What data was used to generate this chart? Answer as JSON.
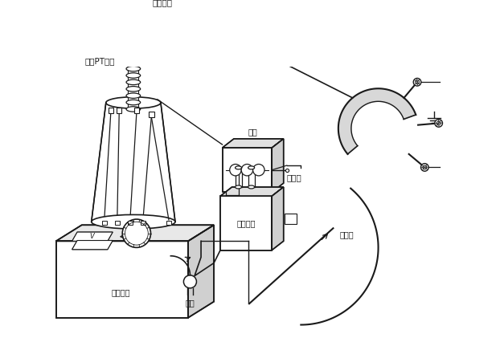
{
  "bg_color": "#ffffff",
  "line_color": "#1a1a1a",
  "labels": {
    "limit_resistor": "限流电阵",
    "hv_pt": "高压PT直流",
    "coupler": "耦器",
    "hv_capacitor": "高压电容",
    "hv_earth": "高压坑",
    "voltage_regulator": "调压器者",
    "power_source": "电源",
    "discharge_rod": "放电棒"
  },
  "figsize": [
    6.22,
    4.26
  ],
  "dpi": 100
}
